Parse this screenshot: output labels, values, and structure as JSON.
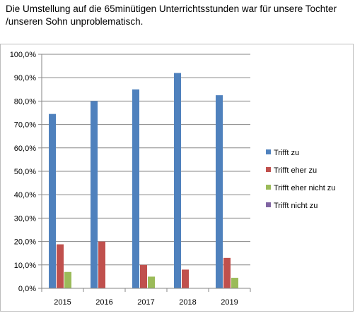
{
  "title": "Die Umstellung auf die 65minütigen Unterrichtsstunden war für unsere Tochter /unseren Sohn unproblematisch.",
  "chart_data": {
    "type": "bar",
    "categories": [
      "2015",
      "2016",
      "2017",
      "2018",
      "2019"
    ],
    "series": [
      {
        "name": "Trifft zu",
        "color": "#4f81bd",
        "values": [
          74.5,
          80.0,
          85.0,
          92.0,
          82.5
        ]
      },
      {
        "name": "Trifft eher zu",
        "color": "#c0504d",
        "values": [
          18.8,
          20.0,
          10.0,
          8.0,
          13.0
        ]
      },
      {
        "name": "Trifft eher nicht zu",
        "color": "#9bbb59",
        "values": [
          7.0,
          0.0,
          5.0,
          0.0,
          4.5
        ]
      },
      {
        "name": "Trifft nicht zu",
        "color": "#8064a2",
        "values": [
          0.0,
          0.0,
          0.0,
          0.0,
          0.0
        ]
      }
    ],
    "yticks": [
      "0,0%",
      "10,0%",
      "20,0%",
      "30,0%",
      "40,0%",
      "50,0%",
      "60,0%",
      "70,0%",
      "80,0%",
      "90,0%",
      "100,0%"
    ],
    "ylim": [
      0,
      100
    ],
    "grid": true,
    "legend_position": "right"
  }
}
